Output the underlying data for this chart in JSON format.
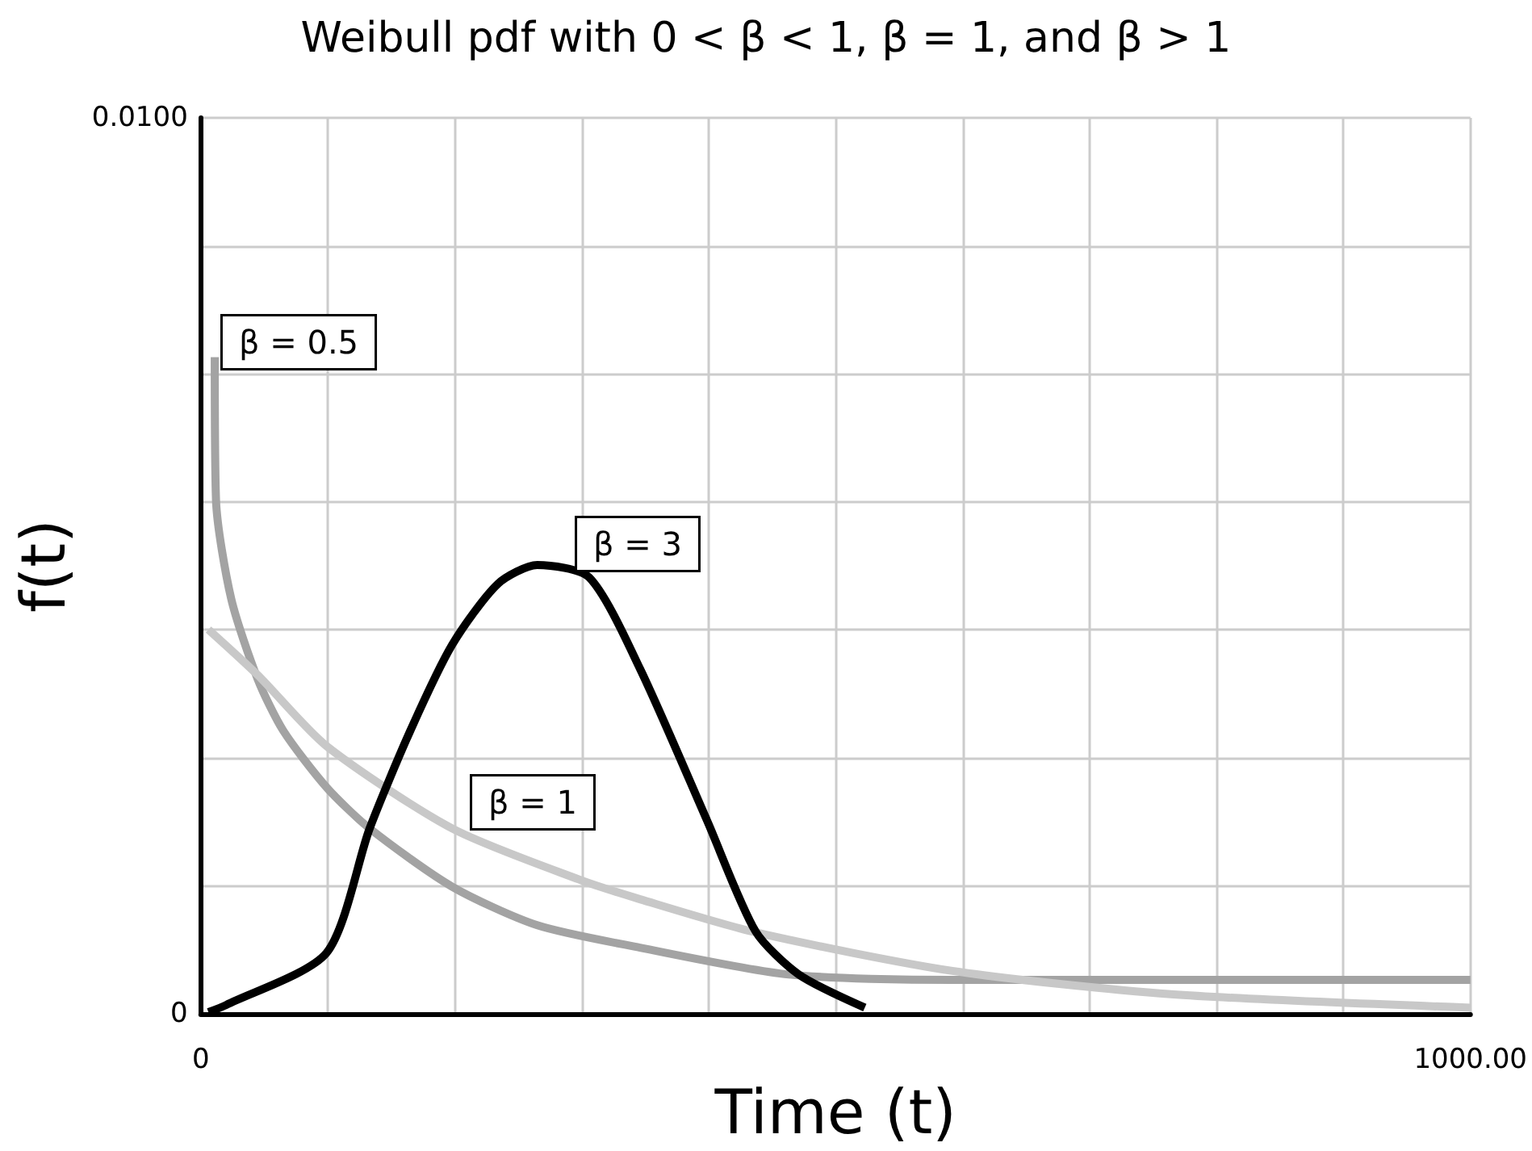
{
  "chart_data": {
    "type": "line",
    "title": "Weibull pdf with 0 < β < 1, β = 1, and β > 1",
    "xlabel": "Time (t)",
    "ylabel": "f(t)",
    "xlim": [
      0,
      1000
    ],
    "ylim": [
      0,
      0.01
    ],
    "xticks": [
      0,
      {
        "value": 100,
        "label": null
      },
      {
        "value": 200,
        "label": null
      },
      {
        "value": 300,
        "label": null
      },
      {
        "value": 400,
        "label": null
      },
      {
        "value": 500,
        "label": null
      },
      {
        "value": 600,
        "label": null
      },
      {
        "value": 700,
        "label": null
      },
      {
        "value": 800,
        "label": null
      },
      {
        "value": 900,
        "label": null
      },
      {
        "value": 1000,
        "label": "1000.00"
      }
    ],
    "yticks": [
      0,
      {
        "value": 0.0014286,
        "label": null
      },
      {
        "value": 0.0028571,
        "label": null
      },
      {
        "value": 0.0042857,
        "label": null
      },
      {
        "value": 0.0057143,
        "label": null
      },
      {
        "value": 0.0071429,
        "label": null
      },
      {
        "value": 0.0085714,
        "label": null
      },
      {
        "value": 0.01,
        "label": "0.0100"
      }
    ],
    "grid": true,
    "marker": "none",
    "line_style": "solid",
    "series": [
      {
        "color": "#a3a3a3",
        "x": [
          11,
          12,
          24,
          45,
          65,
          99,
          133,
          198,
          265,
          346,
          463,
          592,
          800,
          1000
        ],
        "values": [
          0.00733,
          0.00573,
          0.00463,
          0.00373,
          0.00316,
          0.00253,
          0.00207,
          0.00142,
          0.00099,
          0.00074,
          0.00044,
          0.00038,
          0.00038,
          0.00038
        ]
      },
      {
        "color": "#c8c8c8",
        "x": [
          6,
          45,
          99,
          198,
          298,
          346,
          437,
          592,
          764,
          1000
        ],
        "values": [
          0.00429,
          0.00378,
          0.00299,
          0.00207,
          0.0015,
          0.00128,
          0.00091,
          0.00048,
          0.00022,
          7e-05
        ]
      },
      {
        "color": "#000000",
        "x": [
          6,
          20,
          99,
          133,
          165,
          198,
          234,
          265,
          306,
          346,
          399,
          437,
          471,
          523
        ],
        "values": [
          2e-05,
          0.0001,
          0.00068,
          0.00207,
          0.00316,
          0.00412,
          0.0048,
          0.00501,
          0.00487,
          0.00385,
          0.00215,
          0.00092,
          0.00044,
          7e-05
        ]
      }
    ],
    "annotations": [
      "β = 0.5",
      "β = 3",
      "β = 1"
    ]
  }
}
